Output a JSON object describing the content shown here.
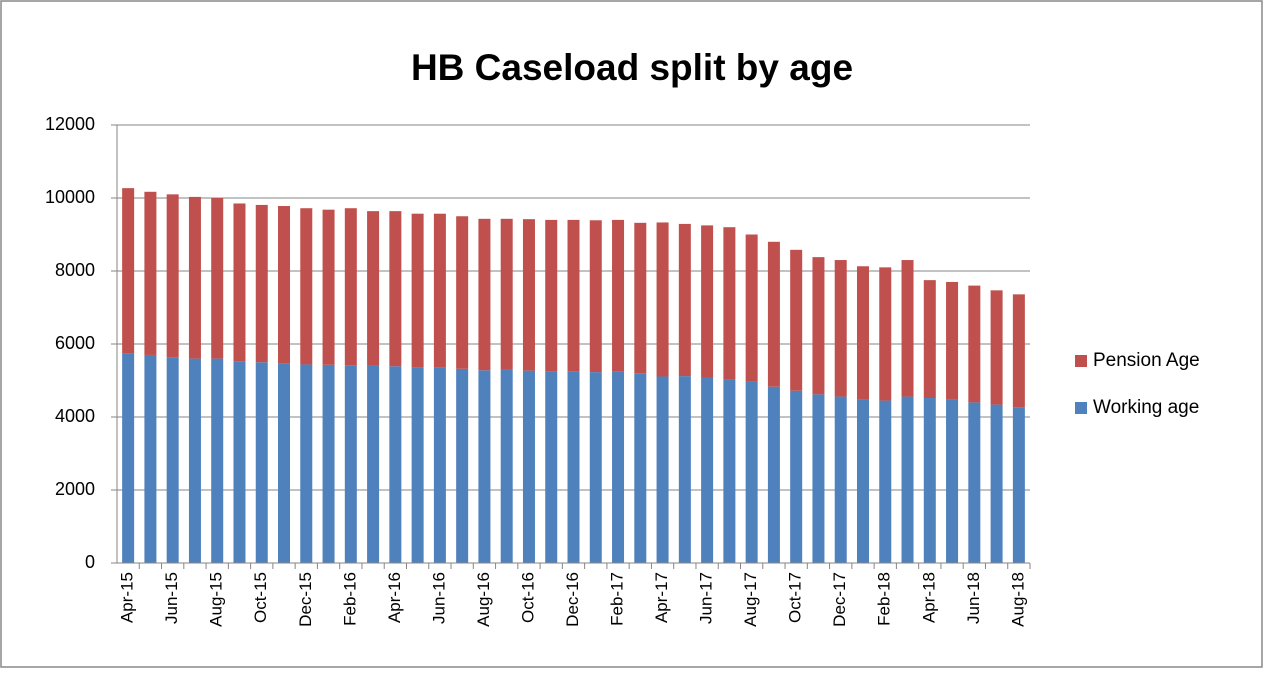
{
  "chart_data": {
    "type": "stacked_bar",
    "title": "HB Caseload split by age",
    "categories": [
      "Apr-15",
      null,
      "Jun-15",
      null,
      "Aug-15",
      null,
      "Oct-15",
      null,
      "Dec-15",
      null,
      "Feb-16",
      null,
      "Apr-16",
      null,
      "Jun-16",
      null,
      "Aug-16",
      null,
      "Oct-16",
      null,
      "Dec-16",
      null,
      "Feb-17",
      null,
      "Apr-17",
      null,
      "Jun-17",
      null,
      "Aug-17",
      null,
      "Oct-17",
      null,
      "Dec-17",
      null,
      "Feb-18",
      null,
      "Apr-18",
      null,
      "Jun-18",
      null,
      "Aug-18"
    ],
    "series": [
      {
        "name": "Working age",
        "color": "#4f81bd",
        "values": [
          5750,
          5700,
          5640,
          5600,
          5600,
          5530,
          5500,
          5460,
          5440,
          5430,
          5420,
          5400,
          5390,
          5360,
          5350,
          5320,
          5280,
          5290,
          5270,
          5250,
          5240,
          5230,
          5250,
          5200,
          5110,
          5120,
          5070,
          5030,
          4970,
          4830,
          4720,
          4620,
          4560,
          4470,
          4450,
          4560,
          4520,
          4470,
          4400,
          4340,
          4270
        ]
      },
      {
        "name": "Pension Age",
        "color": "#c0504d",
        "values": [
          4520,
          4470,
          4460,
          4430,
          4400,
          4320,
          4310,
          4320,
          4280,
          4250,
          4300,
          4240,
          4250,
          4210,
          4220,
          4180,
          4150,
          4140,
          4150,
          4150,
          4160,
          4160,
          4150,
          4120,
          4220,
          4170,
          4180,
          4170,
          4030,
          3970,
          3860,
          3760,
          3740,
          3660,
          3650,
          3740,
          3230,
          3230,
          3200,
          3130,
          3090
        ]
      }
    ],
    "ylim": [
      0,
      12000
    ],
    "yticks": [
      0,
      2000,
      4000,
      6000,
      8000,
      10000,
      12000
    ],
    "grid": true,
    "legend": "right"
  }
}
